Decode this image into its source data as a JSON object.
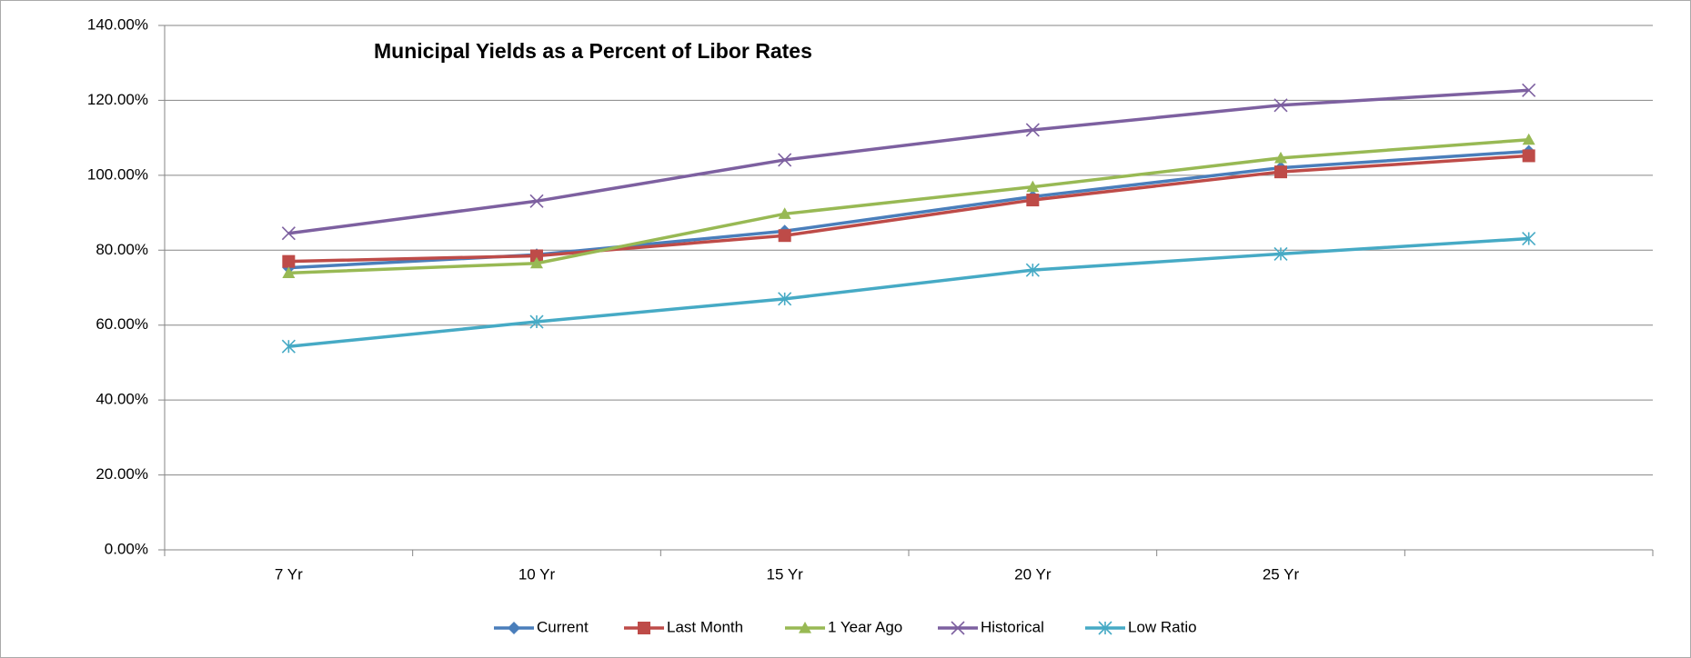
{
  "chart_data": {
    "type": "line",
    "title": "Municipal Yields as a Percent of Libor Rates",
    "categories": [
      "7 Yr",
      "10 Yr",
      "15 Yr",
      "20 Yr",
      "25 Yr",
      null
    ],
    "series": [
      {
        "name": "Current",
        "color": "#4a7ebb",
        "marker": "diamond",
        "values": [
          75.3,
          78.8,
          85.1,
          94.3,
          102.0,
          106.4
        ]
      },
      {
        "name": "Last Month",
        "color": "#be4b48",
        "marker": "square",
        "values": [
          77.0,
          78.5,
          83.9,
          93.4,
          100.9,
          105.2
        ]
      },
      {
        "name": "1 Year Ago",
        "color": "#98b954",
        "marker": "triangle",
        "values": [
          73.9,
          76.5,
          89.7,
          96.9,
          104.6,
          109.5
        ]
      },
      {
        "name": "Historical",
        "color": "#7d60a0",
        "marker": "x",
        "values": [
          84.5,
          93.1,
          104.1,
          112.1,
          118.7,
          122.7
        ]
      },
      {
        "name": "Low Ratio",
        "color": "#46aac5",
        "marker": "asterisk",
        "values": [
          54.3,
          60.9,
          67.0,
          74.7,
          79.0,
          83.1
        ]
      }
    ],
    "ylim": [
      0,
      140
    ],
    "yticks": [
      {
        "value": 0,
        "label": "0.00%"
      },
      {
        "value": 20,
        "label": "20.00%"
      },
      {
        "value": 40,
        "label": "40.00%"
      },
      {
        "value": 60,
        "label": "60.00%"
      },
      {
        "value": 80,
        "label": "80.00%"
      },
      {
        "value": 100,
        "label": "100.00%"
      },
      {
        "value": 120,
        "label": "120.00%"
      },
      {
        "value": 140,
        "label": "140.00%"
      }
    ],
    "grid": true,
    "legend": "bottom"
  }
}
